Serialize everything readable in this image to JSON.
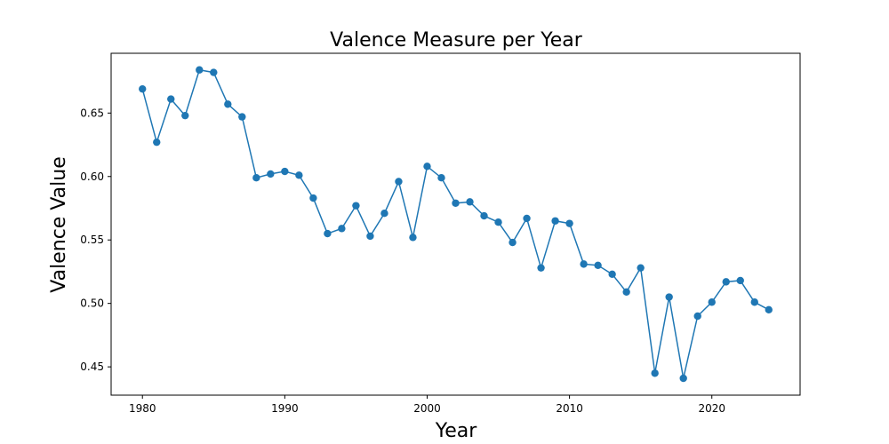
{
  "chart_data": {
    "type": "line",
    "title": "Valence Measure per Year",
    "xlabel": "Year",
    "ylabel": "Valence Value",
    "xlim": [
      1977.8,
      2026.2
    ],
    "ylim": [
      0.4277,
      0.6971
    ],
    "x_ticks": [
      1980,
      1990,
      2000,
      2010,
      2020
    ],
    "y_ticks": [
      0.45,
      0.5,
      0.55,
      0.6,
      0.65
    ],
    "y_tick_labels": [
      "0.45",
      "0.50",
      "0.55",
      "0.60",
      "0.65"
    ],
    "grid": false,
    "marker": "circle",
    "series": [
      {
        "color": "#1f77b4",
        "x": [
          1980,
          1981,
          1982,
          1983,
          1984,
          1985,
          1986,
          1987,
          1988,
          1989,
          1990,
          1991,
          1992,
          1993,
          1994,
          1995,
          1996,
          1997,
          1998,
          1999,
          2000,
          2001,
          2002,
          2003,
          2004,
          2005,
          2006,
          2007,
          2008,
          2009,
          2010,
          2011,
          2012,
          2013,
          2014,
          2015,
          2016,
          2017,
          2018,
          2019,
          2020,
          2021,
          2022,
          2023,
          2024
        ],
        "y": [
          0.669,
          0.627,
          0.661,
          0.648,
          0.684,
          0.682,
          0.657,
          0.647,
          0.599,
          0.602,
          0.604,
          0.601,
          0.583,
          0.555,
          0.559,
          0.577,
          0.553,
          0.571,
          0.596,
          0.552,
          0.608,
          0.599,
          0.579,
          0.58,
          0.569,
          0.564,
          0.548,
          0.567,
          0.528,
          0.565,
          0.563,
          0.531,
          0.53,
          0.523,
          0.509,
          0.528,
          0.445,
          0.505,
          0.441,
          0.49,
          0.501,
          0.517,
          0.518,
          0.501,
          0.495
        ]
      }
    ]
  }
}
